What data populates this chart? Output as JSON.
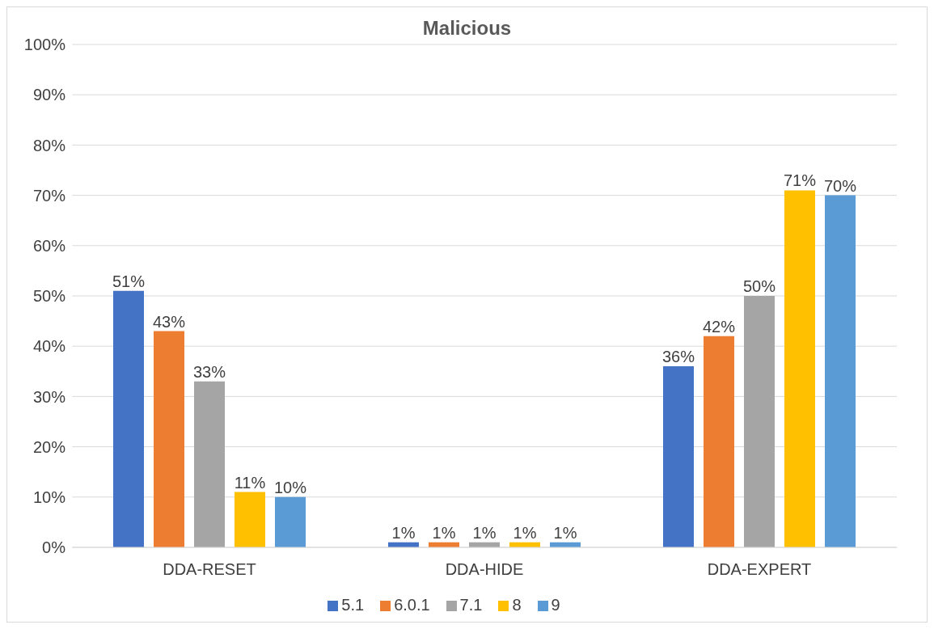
{
  "chart_data": {
    "type": "bar",
    "title": "Malicious",
    "categories": [
      "DDA-RESET",
      "DDA-HIDE",
      "DDA-EXPERT"
    ],
    "series": [
      {
        "name": "5.1",
        "color": "#4472c4",
        "values": [
          51,
          1,
          36
        ],
        "value_labels": [
          "51%",
          "1%",
          "36%"
        ]
      },
      {
        "name": "6.0.1",
        "color": "#ed7d31",
        "values": [
          43,
          1,
          42
        ],
        "value_labels": [
          "43%",
          "1%",
          "42%"
        ]
      },
      {
        "name": "7.1",
        "color": "#a5a5a5",
        "values": [
          33,
          1,
          50
        ],
        "value_labels": [
          "33%",
          "1%",
          "50%"
        ]
      },
      {
        "name": "8",
        "color": "#ffc000",
        "values": [
          11,
          1,
          71
        ],
        "value_labels": [
          "11%",
          "1%",
          "71%"
        ]
      },
      {
        "name": "9",
        "color": "#5b9bd5",
        "values": [
          10,
          1,
          70
        ],
        "value_labels": [
          "10%",
          "1%",
          "70%"
        ]
      }
    ],
    "ylim": [
      0,
      100
    ],
    "yticks": [
      {
        "value": 0,
        "label": "0%"
      },
      {
        "value": 10,
        "label": "10%"
      },
      {
        "value": 20,
        "label": "20%"
      },
      {
        "value": 30,
        "label": "30%"
      },
      {
        "value": 40,
        "label": "40%"
      },
      {
        "value": 50,
        "label": "50%"
      },
      {
        "value": 60,
        "label": "60%"
      },
      {
        "value": 70,
        "label": "70%"
      },
      {
        "value": 80,
        "label": "80%"
      },
      {
        "value": 90,
        "label": "90%"
      },
      {
        "value": 100,
        "label": "100%"
      }
    ],
    "grid": "y",
    "legend": "bottom"
  }
}
